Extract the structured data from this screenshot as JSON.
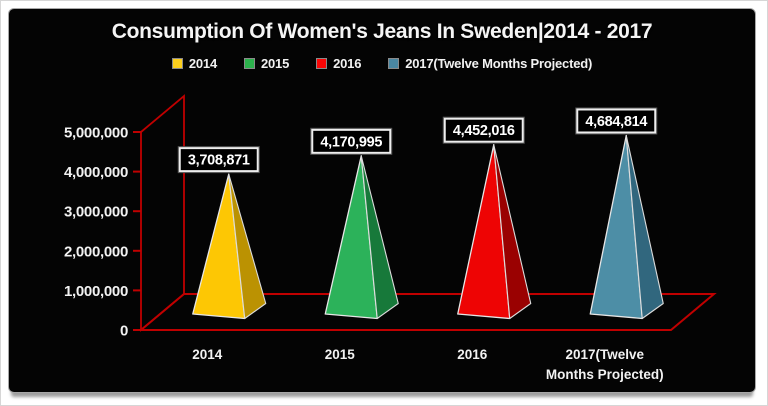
{
  "title": "Consumption Of Women's Jeans In Sweden|2014 - 2017",
  "colors": {
    "panel_background": "#040404",
    "panel_border": "#a8a8a8",
    "shadow": "#9e9e9e",
    "axis_red": "#c00000",
    "text_white": "#f2f2f2",
    "label_box_border": "#eeeeee",
    "label_box_fill": "#000000"
  },
  "legend": {
    "items": [
      {
        "label": "2014",
        "color": "#fccf1d"
      },
      {
        "label": "2015",
        "color": "#2cb14c"
      },
      {
        "label": "2016",
        "color": "#f90606"
      },
      {
        "label": "2017(Twelve Months Projected)",
        "color": "#4a87a2"
      }
    ]
  },
  "chart_data": {
    "type": "bar",
    "subtype": "3d-pyramid",
    "title": "Consumption Of Women's Jeans In Sweden|2014 - 2017",
    "categories": [
      "2014",
      "2015",
      "2016",
      "2017(Twelve Months Projected)"
    ],
    "values": [
      3708871,
      4170995,
      4452016,
      4684814
    ],
    "value_labels": [
      "3,708,871",
      "4,170,995",
      "4,452,016",
      "4,684,814"
    ],
    "series_colors": [
      {
        "front": "#fdc704",
        "side": "#bb9202"
      },
      {
        "front": "#2cb25a",
        "side": "#17793a"
      },
      {
        "front": "#ee0404",
        "side": "#9a0101"
      },
      {
        "front": "#4d8ea6",
        "side": "#31677e"
      }
    ],
    "xlabel": "",
    "ylabel": "",
    "ylim": [
      0,
      5000000
    ],
    "ytick_labels": [
      "0",
      "1,000,000",
      "2,000,000",
      "3,000,000",
      "4,000,000",
      "5,000,000"
    ],
    "grid": false,
    "legend_position": "top",
    "background": "black",
    "axis_color": "#c00000"
  }
}
